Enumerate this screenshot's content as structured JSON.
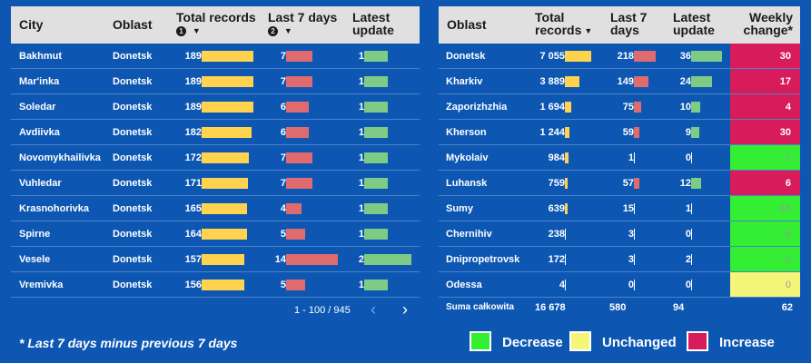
{
  "left_table": {
    "headers": {
      "city": "City",
      "oblast": "Oblast",
      "total_records": "Total records",
      "last7": "Last 7 days",
      "latest_update": "Latest update",
      "sort_badge_1": "1",
      "sort_badge_2": "2"
    },
    "rows": [
      {
        "city": "Bakhmut",
        "oblast": "Donetsk",
        "total": "189",
        "total_frac": 1.0,
        "last7": "7",
        "last7_frac": 0.5,
        "latest": "1",
        "latest_frac": 0.5
      },
      {
        "city": "Mar'inka",
        "oblast": "Donetsk",
        "total": "189",
        "total_frac": 1.0,
        "last7": "7",
        "last7_frac": 0.5,
        "latest": "1",
        "latest_frac": 0.5
      },
      {
        "city": "Soledar",
        "oblast": "Donetsk",
        "total": "189",
        "total_frac": 1.0,
        "last7": "6",
        "last7_frac": 0.43,
        "latest": "1",
        "latest_frac": 0.5
      },
      {
        "city": "Avdiivka",
        "oblast": "Donetsk",
        "total": "182",
        "total_frac": 0.96,
        "last7": "6",
        "last7_frac": 0.43,
        "latest": "1",
        "latest_frac": 0.5
      },
      {
        "city": "Novomykhailivka",
        "oblast": "Donetsk",
        "total": "172",
        "total_frac": 0.91,
        "last7": "7",
        "last7_frac": 0.5,
        "latest": "1",
        "latest_frac": 0.5
      },
      {
        "city": "Vuhledar",
        "oblast": "Donetsk",
        "total": "171",
        "total_frac": 0.9,
        "last7": "7",
        "last7_frac": 0.5,
        "latest": "1",
        "latest_frac": 0.5
      },
      {
        "city": "Krasnohorivka",
        "oblast": "Donetsk",
        "total": "165",
        "total_frac": 0.87,
        "last7": "4",
        "last7_frac": 0.29,
        "latest": "1",
        "latest_frac": 0.5
      },
      {
        "city": "Spirne",
        "oblast": "Donetsk",
        "total": "164",
        "total_frac": 0.87,
        "last7": "5",
        "last7_frac": 0.36,
        "latest": "1",
        "latest_frac": 0.5
      },
      {
        "city": "Vesele",
        "oblast": "Donetsk",
        "total": "157",
        "total_frac": 0.83,
        "last7": "14",
        "last7_frac": 1.0,
        "latest": "2",
        "latest_frac": 1.0
      },
      {
        "city": "Vremivka",
        "oblast": "Donetsk",
        "total": "156",
        "total_frac": 0.83,
        "last7": "5",
        "last7_frac": 0.36,
        "latest": "1",
        "latest_frac": 0.5
      }
    ],
    "pager": {
      "range": "1 - 100 / 945",
      "prev": "‹",
      "next": "›"
    }
  },
  "right_table": {
    "headers": {
      "oblast": "Oblast",
      "total_records": "Total records",
      "last7": "Last 7 days",
      "latest_update": "Latest update",
      "weekly_change": "Weekly change*"
    },
    "rows": [
      {
        "oblast": "Donetsk",
        "total": "7 055",
        "total_frac": 1.0,
        "last7": "218",
        "last7_frac": 1.0,
        "latest": "36",
        "latest_frac": 1.0,
        "change": "30",
        "change_status": "increase"
      },
      {
        "oblast": "Kharkiv",
        "total": "3 889",
        "total_frac": 0.55,
        "last7": "149",
        "last7_frac": 0.68,
        "latest": "24",
        "latest_frac": 0.67,
        "change": "17",
        "change_status": "increase"
      },
      {
        "oblast": "Zaporizhzhia",
        "total": "1 694",
        "total_frac": 0.24,
        "last7": "75",
        "last7_frac": 0.34,
        "latest": "10",
        "latest_frac": 0.28,
        "change": "4",
        "change_status": "increase"
      },
      {
        "oblast": "Kherson",
        "total": "1 244",
        "total_frac": 0.18,
        "last7": "59",
        "last7_frac": 0.27,
        "latest": "9",
        "latest_frac": 0.25,
        "change": "30",
        "change_status": "increase"
      },
      {
        "oblast": "Mykolaiv",
        "total": "984",
        "total_frac": 0.14,
        "last7": "1",
        "last7_frac": 0.0,
        "latest": "0",
        "latest_frac": 0.0,
        "change": "-1",
        "change_status": "decrease"
      },
      {
        "oblast": "Luhansk",
        "total": "759",
        "total_frac": 0.11,
        "last7": "57",
        "last7_frac": 0.26,
        "latest": "12",
        "latest_frac": 0.33,
        "change": "6",
        "change_status": "increase"
      },
      {
        "oblast": "Sumy",
        "total": "639",
        "total_frac": 0.09,
        "last7": "15",
        "last7_frac": 0.0,
        "latest": "1",
        "latest_frac": 0.0,
        "change": "-18",
        "change_status": "decrease"
      },
      {
        "oblast": "Chernihiv",
        "total": "238",
        "total_frac": 0.0,
        "last7": "3",
        "last7_frac": 0.0,
        "latest": "0",
        "latest_frac": 0.0,
        "change": "-5",
        "change_status": "decrease"
      },
      {
        "oblast": "Dnipropetrovsk",
        "total": "172",
        "total_frac": 0.0,
        "last7": "3",
        "last7_frac": 0.0,
        "latest": "2",
        "latest_frac": 0.0,
        "change": "-1",
        "change_status": "decrease"
      },
      {
        "oblast": "Odessa",
        "total": "4",
        "total_frac": 0.0,
        "last7": "0",
        "last7_frac": 0.0,
        "latest": "0",
        "latest_frac": 0.0,
        "change": "0",
        "change_status": "unchanged"
      }
    ],
    "totals": {
      "label": "Suma całkowita",
      "total": "16 678",
      "last7": "580",
      "latest": "94",
      "change": "62"
    }
  },
  "footnote": "* Last 7 days minus previous 7 days",
  "legend": [
    {
      "label": "Decrease",
      "color": "#33ee33"
    },
    {
      "label": "Unchanged",
      "color": "#f5f57a"
    },
    {
      "label": "Increase",
      "color": "#d81b5a"
    }
  ],
  "colors": {
    "background": "#0d57b3",
    "header_bg": "#e0e0e0",
    "bar_total": "#ffd34d",
    "bar_last7": "#e06b6f",
    "bar_latest": "#7ecb86",
    "increase": "#d81b5a",
    "decrease": "#33ee33",
    "unchanged": "#f5f57a"
  }
}
